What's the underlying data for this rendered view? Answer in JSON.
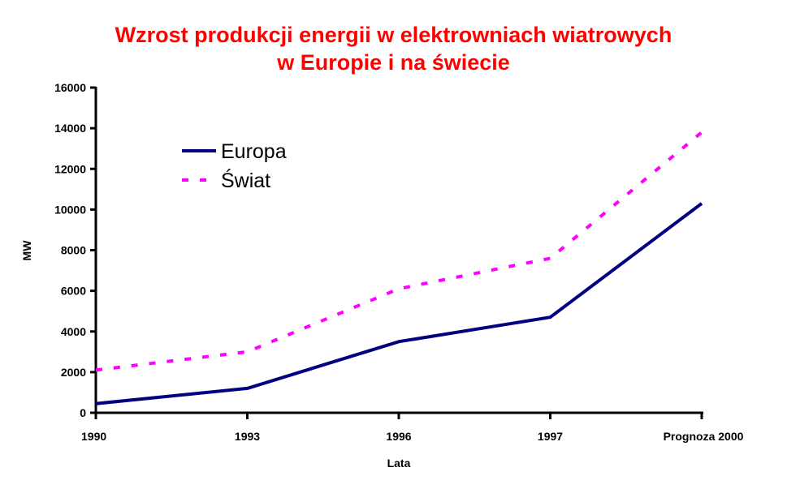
{
  "chart_data": {
    "type": "line",
    "title": "Wzrost produkcji energii w elektrowniach wiatrowych",
    "subtitle": "w Europie i na świecie",
    "xlabel": "Lata",
    "ylabel": "MW",
    "categories": [
      "1990",
      "1993",
      "1996",
      "1997",
      "Prognoza 2000"
    ],
    "ylim": [
      0,
      16000
    ],
    "yticks": [
      0,
      2000,
      4000,
      6000,
      8000,
      10000,
      12000,
      14000,
      16000
    ],
    "grid": false,
    "legend_position": "top-left",
    "series": [
      {
        "name": "Europa",
        "color": "#000080",
        "style": "solid",
        "values": [
          450,
          1200,
          3500,
          4700,
          10300
        ]
      },
      {
        "name": "Świat",
        "color": "#ff00ff",
        "style": "dashed",
        "values": [
          2100,
          3000,
          6100,
          7600,
          13800
        ]
      }
    ]
  }
}
